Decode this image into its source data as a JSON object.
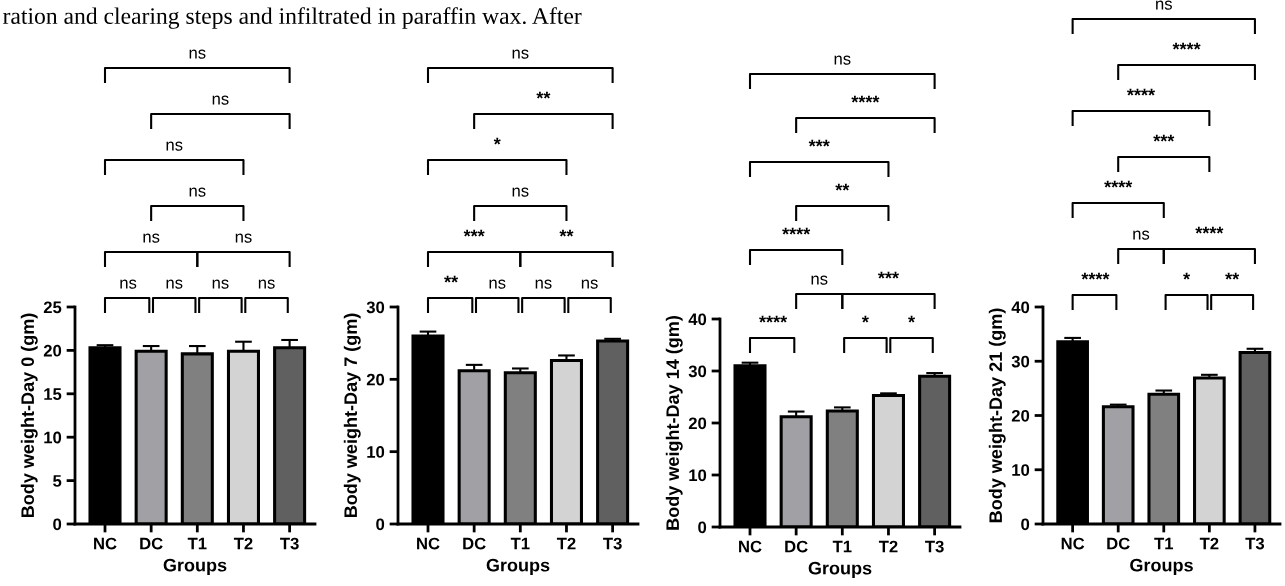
{
  "chart_data": [
    {
      "type": "bar",
      "categories": [
        "NC",
        "DC",
        "T1",
        "T2",
        "T3"
      ],
      "values": [
        20.3,
        19.9,
        19.6,
        19.9,
        20.3
      ],
      "errors": [
        0.3,
        0.6,
        0.9,
        1.1,
        0.9
      ],
      "colors": [
        "#000000",
        "#a0a0a5",
        "#808080",
        "#d3d3d3",
        "#606060"
      ],
      "ylim": [
        0,
        25
      ],
      "yticks": [
        0,
        5,
        10,
        15,
        20,
        25
      ],
      "xlabel": "Groups",
      "ylabel": "Body weight-Day 0 (gm)",
      "annotations": [
        "ns",
        "ns",
        "ns",
        "ns",
        "ns",
        "ns",
        "ns",
        "ns",
        "ns",
        "ns",
        "ration and clearing steps and infiltrated in paraffin wax. After"
      ]
    },
    {
      "type": "bar",
      "categories": [
        "NC",
        "DC",
        "T1",
        "T2",
        "T3"
      ],
      "values": [
        26.0,
        21.2,
        20.9,
        22.6,
        25.3
      ],
      "errors": [
        0.6,
        0.8,
        0.6,
        0.7,
        0.3
      ],
      "colors": [
        "#000000",
        "#a0a0a5",
        "#808080",
        "#d3d3d3",
        "#606060"
      ],
      "ylim": [
        0,
        30
      ],
      "yticks": [
        0,
        10,
        20,
        30
      ],
      "xlabel": "Groups",
      "ylabel": "Body weight-Day 7 (gm)",
      "annotations": [
        "**",
        "ns",
        "ns",
        "ns",
        "***",
        "**",
        "ns",
        "*",
        "**",
        "ns"
      ]
    },
    {
      "type": "bar",
      "categories": [
        "NC",
        "DC",
        "T1",
        "T2",
        "T3"
      ],
      "values": [
        31.0,
        21.2,
        22.3,
        25.3,
        29.0
      ],
      "errors": [
        0.6,
        1.0,
        0.7,
        0.4,
        0.6
      ],
      "colors": [
        "#000000",
        "#a0a0a5",
        "#808080",
        "#d3d3d3",
        "#606060"
      ],
      "ylim": [
        0,
        40
      ],
      "yticks": [
        0,
        10,
        20,
        30,
        40
      ],
      "xlabel": "Groups",
      "ylabel": "Body weight-Day 14 (gm)",
      "annotations": [
        "****",
        "*",
        "*",
        "ns",
        "***",
        "****",
        "**",
        "***",
        "****",
        "ns"
      ]
    },
    {
      "type": "bar",
      "categories": [
        "NC",
        "DC",
        "T1",
        "T2",
        "T3"
      ],
      "values": [
        33.6,
        21.6,
        23.9,
        26.9,
        31.6
      ],
      "errors": [
        0.7,
        0.4,
        0.7,
        0.6,
        0.7
      ],
      "colors": [
        "#000000",
        "#a0a0a5",
        "#808080",
        "#d3d3d3",
        "#606060"
      ],
      "ylim": [
        0,
        40
      ],
      "yticks": [
        0,
        10,
        20,
        30,
        40
      ],
      "xlabel": "Groups",
      "ylabel": "Body weight-Day 21 (gm)",
      "annotations": [
        "****",
        "*",
        "**",
        "ns",
        "****",
        "****",
        "***",
        "****",
        "****",
        "ns"
      ]
    }
  ]
}
